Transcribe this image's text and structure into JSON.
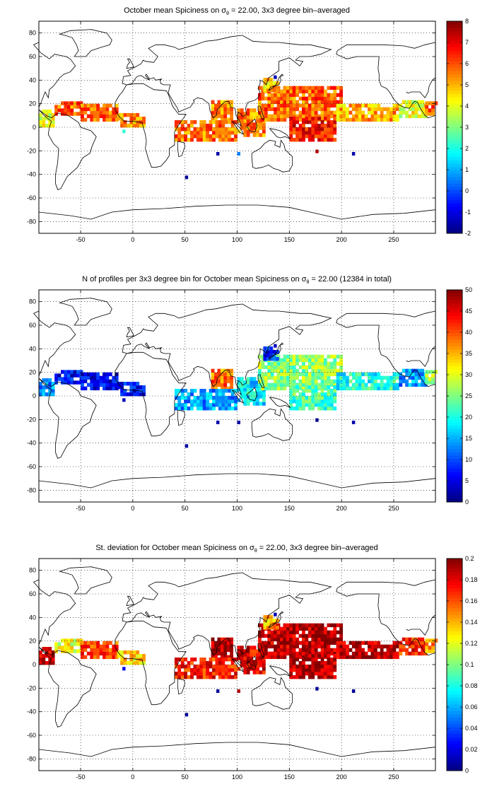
{
  "chart_data": [
    {
      "type": "heatmap",
      "title_pre": "October ",
      "title_mean": "mean",
      "title_mid": " Spiciness on ",
      "title_sigma": "σ",
      "title_sub": "θ",
      "title_post": " = 22.00, 3x3 degree bin–averaged",
      "xlim": [
        -90,
        290
      ],
      "ylim": [
        -90,
        90
      ],
      "xticks": [
        "-50",
        "0",
        "50",
        "100",
        "150",
        "200",
        "250"
      ],
      "yticks": [
        "80",
        "60",
        "40",
        "20",
        "0",
        "-20",
        "-40",
        "-60",
        "-80"
      ],
      "clim": [
        -2,
        8
      ],
      "colorbar_ticks": [
        "8",
        "7",
        "6",
        "5",
        "4",
        "3",
        "2",
        "1",
        "0",
        "-1",
        "-2"
      ],
      "colormap": "jet",
      "grid": true,
      "regions": [
        {
          "lon": [
            -90,
            -75
          ],
          "lat": [
            0,
            15
          ],
          "value": 3.8
        },
        {
          "lon": [
            -75,
            -50
          ],
          "lat": [
            10,
            22
          ],
          "value": 5.8
        },
        {
          "lon": [
            -50,
            -15
          ],
          "lat": [
            5,
            18
          ],
          "value": 5.6
        },
        {
          "lon": [
            -15,
            10
          ],
          "lat": [
            0,
            10
          ],
          "value": 5.2
        },
        {
          "lon": [
            75,
            95
          ],
          "lat": [
            5,
            22
          ],
          "value": 5.4
        },
        {
          "lon": [
            40,
            100
          ],
          "lat": [
            -12,
            5
          ],
          "value": 5.6
        },
        {
          "lon": [
            100,
            125
          ],
          "lat": [
            -8,
            15
          ],
          "value": 5.5
        },
        {
          "lon": [
            120,
            200
          ],
          "lat": [
            5,
            35
          ],
          "value": 5.8
        },
        {
          "lon": [
            125,
            140
          ],
          "lat": [
            30,
            42
          ],
          "value": 4.8
        },
        {
          "lon": [
            150,
            195
          ],
          "lat": [
            -12,
            8
          ],
          "value": 6.6
        },
        {
          "lon": [
            195,
            255
          ],
          "lat": [
            5,
            18
          ],
          "value": 5.0
        },
        {
          "lon": [
            255,
            280
          ],
          "lat": [
            8,
            22
          ],
          "value": 4.0
        },
        {
          "lon": [
            280,
            290
          ],
          "lat": [
            10,
            20
          ],
          "value": 6.0
        }
      ],
      "spots": [
        {
          "lon": -10,
          "lat": -5,
          "value": 2.2
        },
        {
          "lon": 50,
          "lat": -44,
          "value": -1.7
        },
        {
          "lon": 80,
          "lat": -24,
          "value": -1.6
        },
        {
          "lon": 100,
          "lat": -24,
          "value": 0.5
        },
        {
          "lon": 175,
          "lat": -22,
          "value": 7.5
        },
        {
          "lon": 210,
          "lat": -24,
          "value": -1.6
        },
        {
          "lon": 135,
          "lat": 41,
          "value": -1.5
        }
      ]
    },
    {
      "type": "heatmap",
      "title_pre": "N of profiles per 3x3 degree bin for October ",
      "title_mean": "mean",
      "title_mid": " Spiciness on ",
      "title_sigma": "σ",
      "title_sub": "θ",
      "title_post": " = 22.00 (12384 in total)",
      "xlim": [
        -90,
        290
      ],
      "ylim": [
        -90,
        90
      ],
      "xticks": [
        "-50",
        "0",
        "50",
        "100",
        "150",
        "200",
        "250"
      ],
      "yticks": [
        "80",
        "60",
        "40",
        "20",
        "0",
        "-20",
        "-40",
        "-60",
        "-80"
      ],
      "clim": [
        0,
        50
      ],
      "colorbar_ticks": [
        "50",
        "45",
        "40",
        "35",
        "30",
        "25",
        "20",
        "15",
        "10",
        "5",
        "0"
      ],
      "colormap": "jet",
      "grid": true,
      "regions": [
        {
          "lon": [
            -90,
            -75
          ],
          "lat": [
            0,
            15
          ],
          "value": 12
        },
        {
          "lon": [
            -75,
            -50
          ],
          "lat": [
            10,
            22
          ],
          "value": 6
        },
        {
          "lon": [
            -50,
            -15
          ],
          "lat": [
            5,
            18
          ],
          "value": 5
        },
        {
          "lon": [
            -15,
            10
          ],
          "lat": [
            0,
            10
          ],
          "value": 6
        },
        {
          "lon": [
            75,
            95
          ],
          "lat": [
            5,
            22
          ],
          "value": 38
        },
        {
          "lon": [
            40,
            100
          ],
          "lat": [
            -12,
            5
          ],
          "value": 14
        },
        {
          "lon": [
            100,
            125
          ],
          "lat": [
            -8,
            15
          ],
          "value": 18
        },
        {
          "lon": [
            120,
            200
          ],
          "lat": [
            5,
            35
          ],
          "value": 26
        },
        {
          "lon": [
            125,
            140
          ],
          "lat": [
            30,
            42
          ],
          "value": 8
        },
        {
          "lon": [
            150,
            195
          ],
          "lat": [
            -12,
            8
          ],
          "value": 22
        },
        {
          "lon": [
            195,
            255
          ],
          "lat": [
            5,
            18
          ],
          "value": 20
        },
        {
          "lon": [
            255,
            280
          ],
          "lat": [
            8,
            22
          ],
          "value": 14
        },
        {
          "lon": [
            280,
            290
          ],
          "lat": [
            10,
            20
          ],
          "value": 28
        }
      ],
      "spots": [
        {
          "lon": -10,
          "lat": -5,
          "value": 3
        },
        {
          "lon": 50,
          "lat": -44,
          "value": 2
        },
        {
          "lon": 80,
          "lat": -24,
          "value": 2
        },
        {
          "lon": 100,
          "lat": -24,
          "value": 2
        },
        {
          "lon": 175,
          "lat": -22,
          "value": 1
        },
        {
          "lon": 210,
          "lat": -24,
          "value": 2
        },
        {
          "lon": 135,
          "lat": 41,
          "value": 3
        }
      ]
    },
    {
      "type": "heatmap",
      "title_pre": "St. deviation for October ",
      "title_mean": "mean",
      "title_mid": " Spiciness on ",
      "title_sigma": "σ",
      "title_sub": "θ",
      "title_post": " = 22.00, 3x3 degree bin–averaged",
      "xlim": [
        -90,
        290
      ],
      "ylim": [
        -90,
        90
      ],
      "xticks": [
        "-50",
        "0",
        "50",
        "100",
        "150",
        "200",
        "250"
      ],
      "yticks": [
        "80",
        "60",
        "40",
        "20",
        "0",
        "-20",
        "-40",
        "-60",
        "-80"
      ],
      "clim": [
        0,
        0.2
      ],
      "colorbar_ticks": [
        "0.2",
        "0.18",
        "0.16",
        "0.14",
        "0.12",
        "0.1",
        "0.08",
        "0.06",
        "0.04",
        "0.02",
        "0"
      ],
      "colormap": "jet",
      "grid": true,
      "regions": [
        {
          "lon": [
            -90,
            -75
          ],
          "lat": [
            0,
            15
          ],
          "value": 0.18
        },
        {
          "lon": [
            -75,
            -50
          ],
          "lat": [
            10,
            22
          ],
          "value": 0.12
        },
        {
          "lon": [
            -50,
            -15
          ],
          "lat": [
            5,
            18
          ],
          "value": 0.16
        },
        {
          "lon": [
            -15,
            10
          ],
          "lat": [
            0,
            10
          ],
          "value": 0.13
        },
        {
          "lon": [
            75,
            95
          ],
          "lat": [
            5,
            22
          ],
          "value": 0.19
        },
        {
          "lon": [
            40,
            100
          ],
          "lat": [
            -12,
            5
          ],
          "value": 0.17
        },
        {
          "lon": [
            100,
            125
          ],
          "lat": [
            -8,
            15
          ],
          "value": 0.18
        },
        {
          "lon": [
            120,
            200
          ],
          "lat": [
            5,
            35
          ],
          "value": 0.19
        },
        {
          "lon": [
            125,
            140
          ],
          "lat": [
            30,
            42
          ],
          "value": 0.14
        },
        {
          "lon": [
            150,
            195
          ],
          "lat": [
            -12,
            8
          ],
          "value": 0.19
        },
        {
          "lon": [
            195,
            255
          ],
          "lat": [
            5,
            18
          ],
          "value": 0.19
        },
        {
          "lon": [
            255,
            280
          ],
          "lat": [
            8,
            22
          ],
          "value": 0.17
        },
        {
          "lon": [
            280,
            290
          ],
          "lat": [
            10,
            20
          ],
          "value": 0.15
        }
      ],
      "spots": [
        {
          "lon": -10,
          "lat": -5,
          "value": 0.02
        },
        {
          "lon": 50,
          "lat": -44,
          "value": 0.005
        },
        {
          "lon": 80,
          "lat": -24,
          "value": 0.005
        },
        {
          "lon": 100,
          "lat": -24,
          "value": 0.19
        },
        {
          "lon": 175,
          "lat": -22,
          "value": 0.005
        },
        {
          "lon": 210,
          "lat": -24,
          "value": 0.005
        },
        {
          "lon": 135,
          "lat": 41,
          "value": 0.01
        }
      ]
    }
  ]
}
